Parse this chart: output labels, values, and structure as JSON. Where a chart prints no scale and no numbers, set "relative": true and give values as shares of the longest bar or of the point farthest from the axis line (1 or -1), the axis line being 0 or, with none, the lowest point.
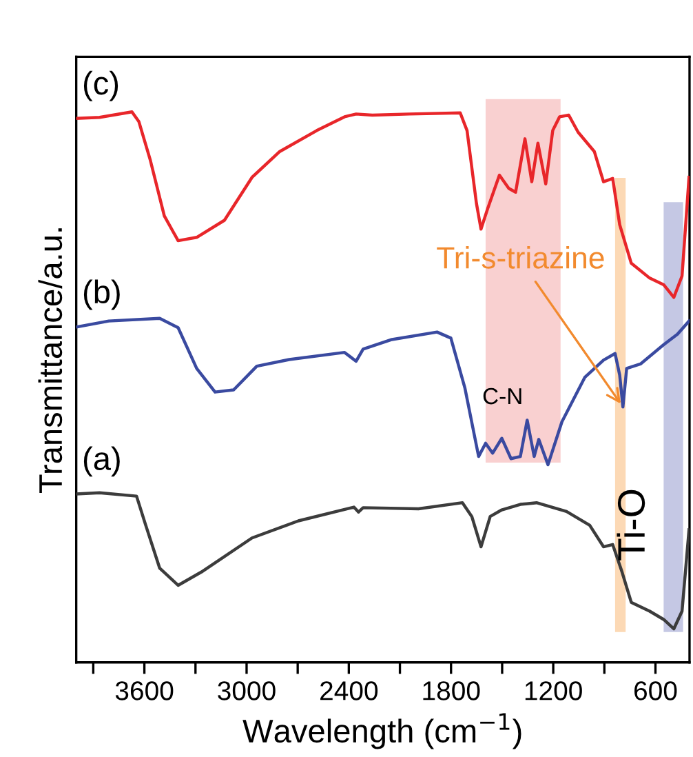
{
  "chart_data": {
    "type": "line",
    "relative": true,
    "xlabel": "Wavelength (cm$^{−1}$)",
    "ylabel": "Transmittance/a.u.",
    "xlim": [
      4000,
      400
    ],
    "xticks": [
      {
        "value": 3900,
        "label": null
      },
      3600,
      {
        "value": 3300,
        "label": null
      },
      3000,
      {
        "value": 2700,
        "label": null
      },
      2400,
      {
        "value": 2100,
        "label": null
      },
      1800,
      {
        "value": 1500,
        "label": null
      },
      1200,
      {
        "value": 900,
        "label": null
      },
      600
    ],
    "tick_labels": "x",
    "grid": false,
    "legend": false,
    "marker": "none",
    "line_style": "solid",
    "series": [
      {
        "name": "(c)",
        "color": "#e8262a",
        "x": [
          4000,
          3863,
          3673,
          3632,
          3565,
          3483,
          3402,
          3293,
          3130,
          2968,
          2805,
          2588,
          2425,
          2357,
          2262,
          2045,
          1746,
          1706,
          1651,
          1624,
          1583,
          1516,
          1461,
          1421,
          1366,
          1326,
          1290,
          1244,
          1203,
          1163,
          1109,
          1054,
          959,
          905,
          851,
          810,
          742,
          634,
          552,
          492,
          444,
          403
        ],
        "values": [
          0.988,
          0.99,
          1.0,
          0.982,
          0.912,
          0.811,
          0.766,
          0.772,
          0.803,
          0.881,
          0.928,
          0.966,
          0.991,
          0.996,
          0.994,
          0.996,
          0.998,
          0.966,
          0.834,
          0.787,
          0.826,
          0.885,
          0.861,
          0.854,
          0.951,
          0.873,
          0.943,
          0.869,
          0.966,
          0.991,
          0.994,
          0.963,
          0.928,
          0.873,
          0.879,
          0.795,
          0.725,
          0.698,
          0.686,
          0.663,
          0.702,
          0.881
        ]
      },
      {
        "name": "(b)",
        "color": "#3a4aa0",
        "x": [
          4000,
          3809,
          3510,
          3402,
          3293,
          3185,
          3076,
          2940,
          2750,
          2425,
          2357,
          2316,
          2153,
          1882,
          1801,
          1719,
          1638,
          1597,
          1556,
          1502,
          1448,
          1393,
          1353,
          1312,
          1285,
          1231,
          1149,
          1014,
          905,
          837,
          810,
          791,
          769,
          688,
          552,
          471,
          403
        ],
        "values": [
          0.609,
          0.62,
          0.625,
          0.608,
          0.534,
          0.491,
          0.495,
          0.538,
          0.55,
          0.563,
          0.547,
          0.569,
          0.586,
          0.6,
          0.589,
          0.499,
          0.374,
          0.398,
          0.38,
          0.407,
          0.37,
          0.374,
          0.44,
          0.374,
          0.405,
          0.359,
          0.437,
          0.518,
          0.549,
          0.561,
          0.522,
          0.464,
          0.534,
          0.542,
          0.577,
          0.596,
          0.62
        ]
      },
      {
        "name": "(a)",
        "color": "#3c3c3c",
        "x": [
          4000,
          3863,
          3646,
          3592,
          3510,
          3402,
          3266,
          2968,
          2696,
          2370,
          2343,
          2316,
          1991,
          1733,
          1678,
          1624,
          1570,
          1502,
          1393,
          1298,
          1122,
          986,
          905,
          851,
          796,
          742,
          634,
          552,
          492,
          444,
          403
        ],
        "values": [
          0.306,
          0.308,
          0.302,
          0.249,
          0.171,
          0.14,
          0.164,
          0.226,
          0.257,
          0.282,
          0.273,
          0.281,
          0.279,
          0.29,
          0.265,
          0.21,
          0.265,
          0.277,
          0.287,
          0.29,
          0.274,
          0.249,
          0.21,
          0.214,
          0.164,
          0.109,
          0.093,
          0.078,
          0.061,
          0.093,
          0.241
        ]
      }
    ],
    "bands": [
      {
        "axis": "x",
        "from": 1597,
        "to": 1157,
        "label": "C-N",
        "color": "#f9d0d0"
      },
      {
        "axis": "x",
        "from": 837,
        "to": 775,
        "label": null,
        "color": "#fcd9b5"
      },
      {
        "axis": "x",
        "from": 552,
        "to": 438,
        "label": "Ti-O",
        "color": "#c5c8e4"
      }
    ],
    "annotations": [
      {
        "text": "Tri-s-triazine",
        "x": 791,
        "y": 0.464
      }
    ]
  }
}
